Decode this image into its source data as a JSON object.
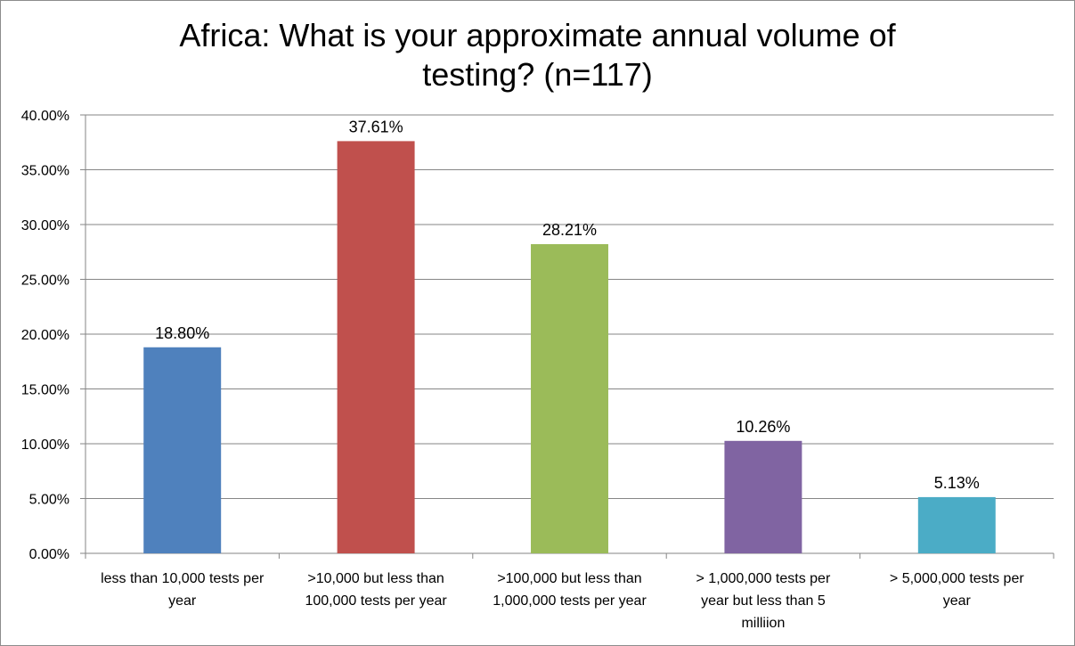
{
  "chart_data": {
    "type": "bar",
    "title_lines": [
      "Africa: What is your approximate annual volume of",
      "testing? (n=117)"
    ],
    "xlabel": "",
    "ylabel": "",
    "ylim": [
      0,
      40
    ],
    "yticks": [
      0,
      5,
      10,
      15,
      20,
      25,
      30,
      35,
      40
    ],
    "ytick_labels": [
      "0.00%",
      "5.00%",
      "10.00%",
      "15.00%",
      "20.00%",
      "25.00%",
      "30.00%",
      "35.00%",
      "40.00%"
    ],
    "grid": true,
    "categories": [
      [
        "less than 10,000 tests per",
        "year"
      ],
      [
        ">10,000 but less than",
        "100,000 tests per year"
      ],
      [
        ">100,000 but less than",
        "1,000,000 tests per year"
      ],
      [
        "> 1,000,000 tests per",
        "year but less than 5",
        "milliion"
      ],
      [
        "> 5,000,000 tests per",
        "year"
      ]
    ],
    "values": [
      18.8,
      37.61,
      28.21,
      10.26,
      5.13
    ],
    "value_labels": [
      "18.80%",
      "37.61%",
      "28.21%",
      "10.26%",
      "5.13%"
    ],
    "colors": [
      "#4f81bd",
      "#c0504d",
      "#9bbb59",
      "#8064a2",
      "#4bacc6"
    ]
  }
}
